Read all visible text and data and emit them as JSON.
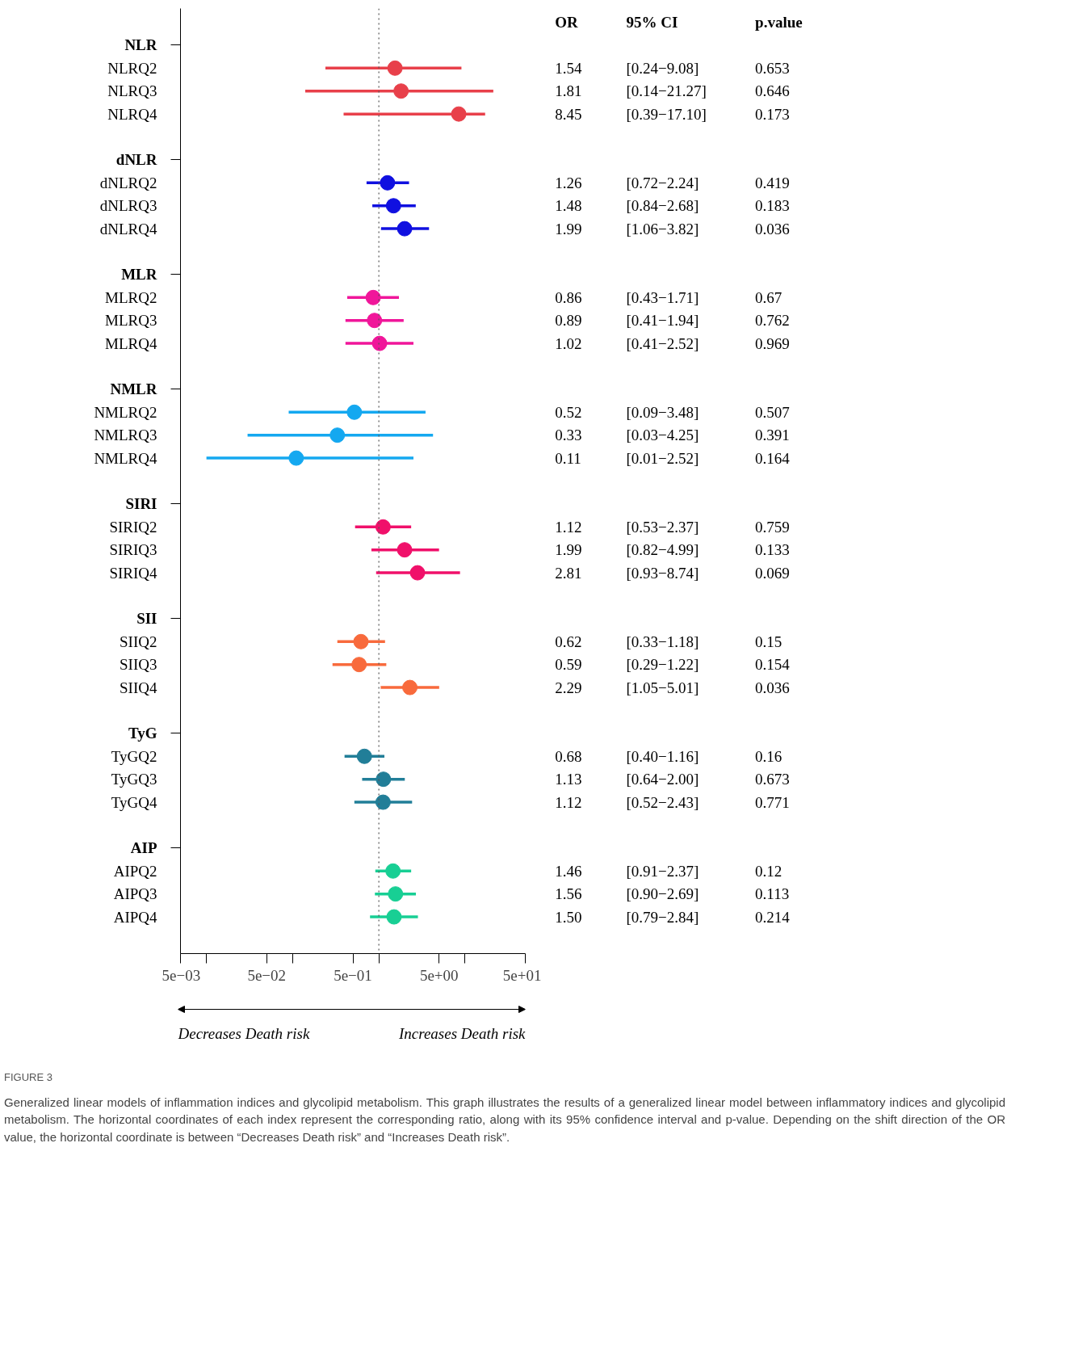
{
  "chart_data": {
    "type": "scatter",
    "orientation": "horizontal",
    "log": "x",
    "marker": "circle",
    "grid": false,
    "title": "FIGURE 3",
    "subtitle": "Generalized linear models of inflammation indices and glycolipid metabolism. This graph illustrates the results of a generalized linear model between inflammatory indices and glycolipid metabolism. The horizontal coordinates of each index represent the corresponding ratio, along with its 95% confidence interval and p-value. Depending on the shift direction of the OR value, the horizontal coordinate is between “Decreases Death risk” and “Increases Death risk”.",
    "categories": [
      "NLR",
      "NLRQ2",
      "NLRQ3",
      "NLRQ4",
      null,
      "dNLR",
      "dNLRQ2",
      "dNLRQ3",
      "dNLRQ4",
      null,
      "MLR",
      "MLRQ2",
      "MLRQ3",
      "MLRQ4",
      null,
      "NMLR",
      "NMLRQ2",
      "NMLRQ3",
      "NMLRQ4",
      null,
      "SIRI",
      "SIRIQ2",
      "SIRIQ3",
      "SIRIQ4",
      null,
      "SII",
      "SIIQ2",
      "SIIQ3",
      "SIIQ4",
      null,
      "TyG",
      "TyGQ2",
      "TyGQ3",
      "TyGQ4",
      null,
      "AIP",
      "AIPQ2",
      "AIPQ3",
      "AIPQ4",
      null
    ],
    "values": [
      null,
      1.54,
      1.81,
      8.45,
      null,
      null,
      1.26,
      1.48,
      1.99,
      null,
      null,
      0.86,
      0.89,
      1.02,
      null,
      null,
      0.52,
      0.33,
      0.11,
      null,
      null,
      1.12,
      1.99,
      2.81,
      null,
      null,
      0.62,
      0.59,
      2.29,
      null,
      null,
      0.68,
      1.13,
      1.12,
      null,
      null,
      1.46,
      1.56,
      1.5,
      null
    ],
    "errors": [
      null,
      [
        0.24,
        9.08
      ],
      [
        0.14,
        21.27
      ],
      [
        0.39,
        17.1
      ],
      null,
      null,
      [
        0.72,
        2.24
      ],
      [
        0.84,
        2.68
      ],
      [
        1.06,
        3.82
      ],
      null,
      null,
      [
        0.43,
        1.71
      ],
      [
        0.41,
        1.94
      ],
      [
        0.41,
        2.52
      ],
      null,
      null,
      [
        0.09,
        3.48
      ],
      [
        0.03,
        4.25
      ],
      [
        0.01,
        2.52
      ],
      null,
      null,
      [
        0.53,
        2.37
      ],
      [
        0.82,
        4.99
      ],
      [
        0.93,
        8.74
      ],
      null,
      null,
      [
        0.33,
        1.18
      ],
      [
        0.29,
        1.22
      ],
      [
        1.05,
        5.01
      ],
      null,
      null,
      [
        0.4,
        1.16
      ],
      [
        0.64,
        2.0
      ],
      [
        0.52,
        2.43
      ],
      null,
      null,
      [
        0.91,
        2.37
      ],
      [
        0.9,
        2.69
      ],
      [
        0.79,
        2.84
      ],
      null
    ],
    "value_labels": [
      null,
      "1.54",
      "1.81",
      "8.45",
      null,
      null,
      "1.26",
      "1.48",
      "1.99",
      null,
      null,
      "0.86",
      "0.89",
      "1.02",
      null,
      null,
      "0.52",
      "0.33",
      "0.11",
      null,
      null,
      "1.12",
      "1.99",
      "2.81",
      null,
      null,
      "0.62",
      "0.59",
      "2.29",
      null,
      null,
      "0.68",
      "1.13",
      "1.12",
      null,
      null,
      "1.46",
      "1.56",
      "1.50",
      null
    ],
    "colors": [
      null,
      "#e8404a",
      "#e8404a",
      "#e8404a",
      null,
      null,
      "#1010e0",
      "#1010e0",
      "#1010e0",
      null,
      null,
      "#f0169a",
      "#f0169a",
      "#f0169a",
      null,
      null,
      "#14a8f0",
      "#14a8f0",
      "#14a8f0",
      null,
      null,
      "#f0106a",
      "#f0106a",
      "#f0106a",
      null,
      null,
      "#f86a3c",
      "#f86a3c",
      "#f86a3c",
      null,
      null,
      "#217e98",
      "#217e98",
      "#217e98",
      null,
      null,
      "#18cf94",
      "#18cf94",
      "#18cf94",
      null
    ],
    "xlim": [
      0.005,
      50
    ],
    "xticks": [
      {
        "value": 0.005,
        "label": "5e−03"
      },
      {
        "value": 0.01,
        "label": null
      },
      {
        "value": 0.05,
        "label": "5e−02"
      },
      {
        "value": 0.1,
        "label": null
      },
      {
        "value": 0.5,
        "label": "5e−01"
      },
      {
        "value": 1,
        "label": null
      },
      {
        "value": 5,
        "label": "5e+00"
      },
      {
        "value": 10,
        "label": null
      },
      {
        "value": 50,
        "label": "5e+01"
      }
    ],
    "ref_lines": [
      {
        "axis": "x",
        "value": 1,
        "line_style": "dotted",
        "color": "#555555"
      }
    ],
    "annotations": [
      "OR",
      "95% CI",
      "p.value",
      "Decreases Death risk",
      "Increases Death risk",
      "[0.24−9.08]",
      "0.653",
      "[0.14−21.27]",
      "0.646",
      "[0.39−17.10]",
      "0.173",
      "[0.72−2.24]",
      "0.419",
      "[0.84−2.68]",
      "0.183",
      "[1.06−3.82]",
      "0.036",
      "[0.43−1.71]",
      "0.67",
      "[0.41−1.94]",
      "0.762",
      "[0.41−2.52]",
      "0.969",
      "[0.09−3.48]",
      "0.507",
      "[0.03−4.25]",
      "0.391",
      "[0.01−2.52]",
      "0.164",
      "[0.53−2.37]",
      "0.759",
      "[0.82−4.99]",
      "0.133",
      "[0.93−8.74]",
      "0.069",
      "[0.33−1.18]",
      "0.15",
      "[0.29−1.22]",
      "0.154",
      "[1.05−5.01]",
      "0.036",
      "[0.40−1.16]",
      "0.16",
      "[0.64−2.00]",
      "0.673",
      "[0.52−2.43]",
      "0.771",
      "[0.91−2.37]",
      "0.12",
      "[0.90−2.69]",
      "0.113",
      "[0.79−2.84]",
      "0.214"
    ]
  }
}
